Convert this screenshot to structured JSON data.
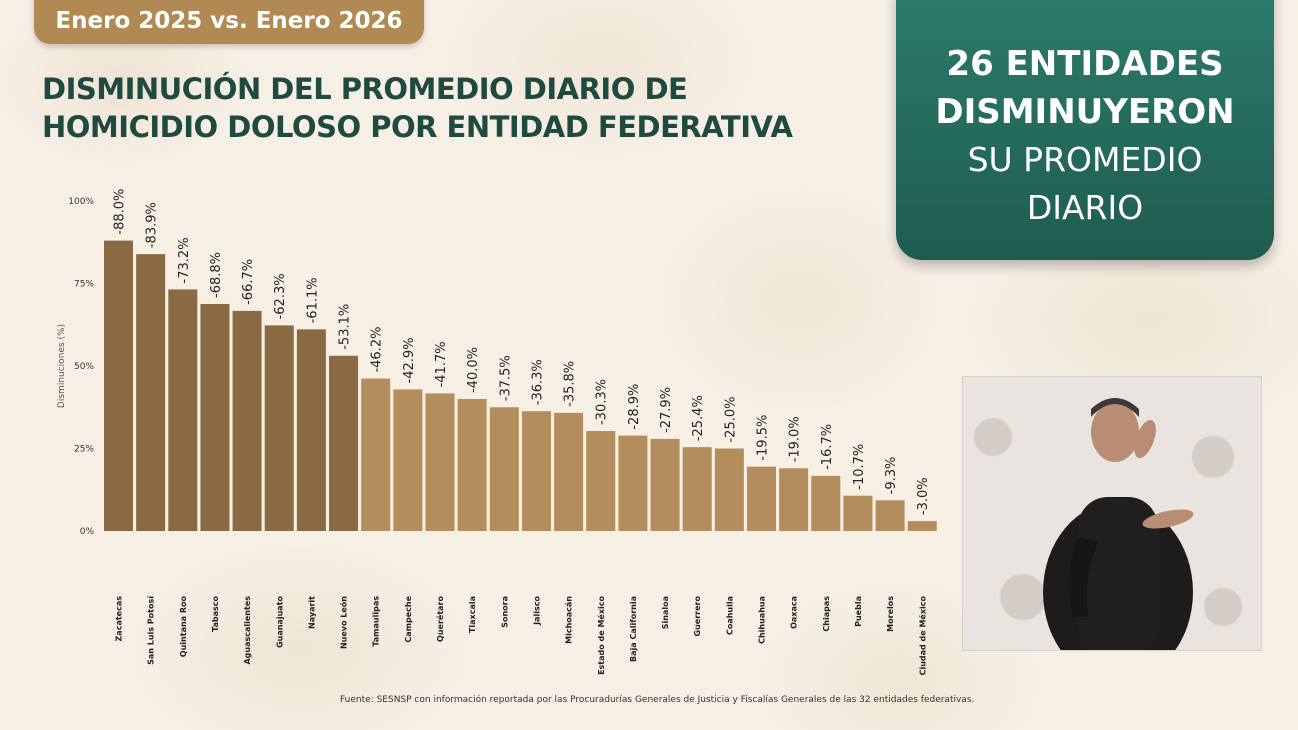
{
  "header": {
    "period": "Enero 2025 vs. Enero 2026",
    "title_line1": "DISMINUCIÓN DEL PROMEDIO DIARIO DE",
    "title_line2": "HOMICIDIO DOLOSO POR ENTIDAD FEDERATIVA"
  },
  "callout": {
    "line1": "26 ENTIDADES",
    "line2": "DISMINUYERON",
    "line3": "SU PROMEDIO",
    "line4": "DIARIO"
  },
  "colors": {
    "dark_bar": "#8a6a43",
    "light_bar": "#b38d5b",
    "title_green": "#1f4a3f",
    "callout_green": "#1f5c50",
    "pill": "#b08a52"
  },
  "chart_data": {
    "type": "bar",
    "title": "",
    "xlabel": "",
    "ylabel": "Disminuciones (%)",
    "ylim": [
      0,
      100
    ],
    "yticks": [
      0,
      25,
      50,
      75,
      100
    ],
    "ytick_labels": [
      "0%",
      "25%",
      "50%",
      "75%",
      "100%"
    ],
    "grid": false,
    "categories": [
      "Zacatecas",
      "San Luis Potosí",
      "Quintana Roo",
      "Tabasco",
      "Aguascalientes",
      "Guanajuato",
      "Nayarit",
      "Nuevo León",
      "Tamaulipas",
      "Campeche",
      "Querétaro",
      "Tlaxcala",
      "Sonora",
      "Jalisco",
      "Michoacán",
      "Estado de México",
      "Baja California",
      "Sinaloa",
      "Guerrero",
      "Coahuila",
      "Chihuahua",
      "Oaxaca",
      "Chiapas",
      "Puebla",
      "Morelos",
      "Ciudad de México"
    ],
    "values": [
      88.0,
      83.9,
      73.2,
      68.8,
      66.7,
      62.3,
      61.1,
      53.1,
      46.2,
      42.9,
      41.7,
      40.0,
      37.5,
      36.3,
      35.8,
      30.3,
      28.9,
      27.9,
      25.4,
      25.0,
      19.5,
      19.0,
      16.7,
      10.7,
      9.3,
      3.0
    ],
    "labels": [
      "-88.0%",
      "-83.9%",
      "-73.2%",
      "-68.8%",
      "-66.7%",
      "-62.3%",
      "-61.1%",
      "-53.1%",
      "-46.2%",
      "-42.9%",
      "-41.7%",
      "-40.0%",
      "-37.5%",
      "-36.3%",
      "-35.8%",
      "-30.3%",
      "-28.9%",
      "-27.9%",
      "-25.4%",
      "-25.0%",
      "-19.5%",
      "-19.0%",
      "-16.7%",
      "-10.7%",
      "-9.3%",
      "-3.0%"
    ],
    "dark_group_count": 8
  },
  "source": "Fuente: SESNSP con información reportada por las Procuradurías Generales de Justicia y Fiscalías Generales de las 32 entidades federativas."
}
